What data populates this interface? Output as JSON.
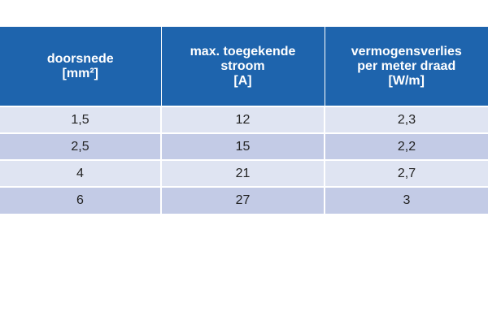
{
  "table": {
    "columns": [
      {
        "lines": [
          "doorsnede",
          "[mm²]"
        ]
      },
      {
        "lines": [
          "max. toegekende",
          "stroom",
          "[A]"
        ]
      },
      {
        "lines": [
          "vermogensverlies",
          "per meter draad",
          "[W/m]"
        ]
      }
    ],
    "rows": [
      [
        "1,5",
        "12",
        "2,3"
      ],
      [
        "2,5",
        "15",
        "2,2"
      ],
      [
        "4",
        "21",
        "2,7"
      ],
      [
        "6",
        "27",
        "3"
      ]
    ]
  }
}
